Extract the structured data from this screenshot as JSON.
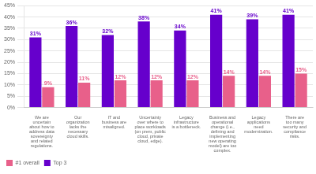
{
  "chart_data": {
    "type": "bar",
    "categories": [
      "We are\nuncertain\nabout how to\naddress data\nsovereignty\nand related\nregulations.",
      "Our\norganization\nlacks the\nnecessary\ncloud skills.",
      "IT and\nbusiness are\nmisaligned.",
      "Uncertainty\nover where to\nplace workloads\n(on prem, public\ncloud, private\ncloud, edge).",
      "Legacy\ninfrastructure\nis a bottleneck.",
      "Business and\noperational\nchange (i.e.,\ndefining and\nimplementing\nnew operating\nmodel) are too\ncomplex.",
      "Legacy\napplications\nneed\nmodernization.",
      "There are\ntoo many\nsecurity and\ncompliance\nrisks."
    ],
    "series": [
      {
        "name": "Top 3",
        "color": "#6600cc",
        "values": [
          31,
          36,
          32,
          38,
          34,
          41,
          39,
          41
        ],
        "value_labels": [
          "31%",
          "36%",
          "32%",
          "38%",
          "34%",
          "41%",
          "39%",
          "41%"
        ]
      },
      {
        "name": "#1 overall",
        "color": "#e8608a",
        "values": [
          9,
          11,
          12,
          12,
          12,
          14,
          14,
          15
        ],
        "value_labels": [
          "9%",
          "11%",
          "12%",
          "12%",
          "12%",
          "14%",
          "14%",
          "15%"
        ]
      }
    ],
    "ylim": [
      0,
      45
    ],
    "yticks": [
      {
        "value": 0,
        "label": "0%"
      },
      {
        "value": 5,
        "label": "5%"
      },
      {
        "value": 10,
        "label": "10%"
      },
      {
        "value": 15,
        "label": "15%"
      },
      {
        "value": 20,
        "label": "20%"
      },
      {
        "value": 25,
        "label": "25%"
      },
      {
        "value": 30,
        "label": "30%"
      },
      {
        "value": 35,
        "label": "35%"
      },
      {
        "value": 40,
        "label": "40%"
      },
      {
        "value": 45,
        "label": "45%"
      }
    ],
    "grid": true,
    "data_labels": true,
    "legend": "lower left"
  }
}
